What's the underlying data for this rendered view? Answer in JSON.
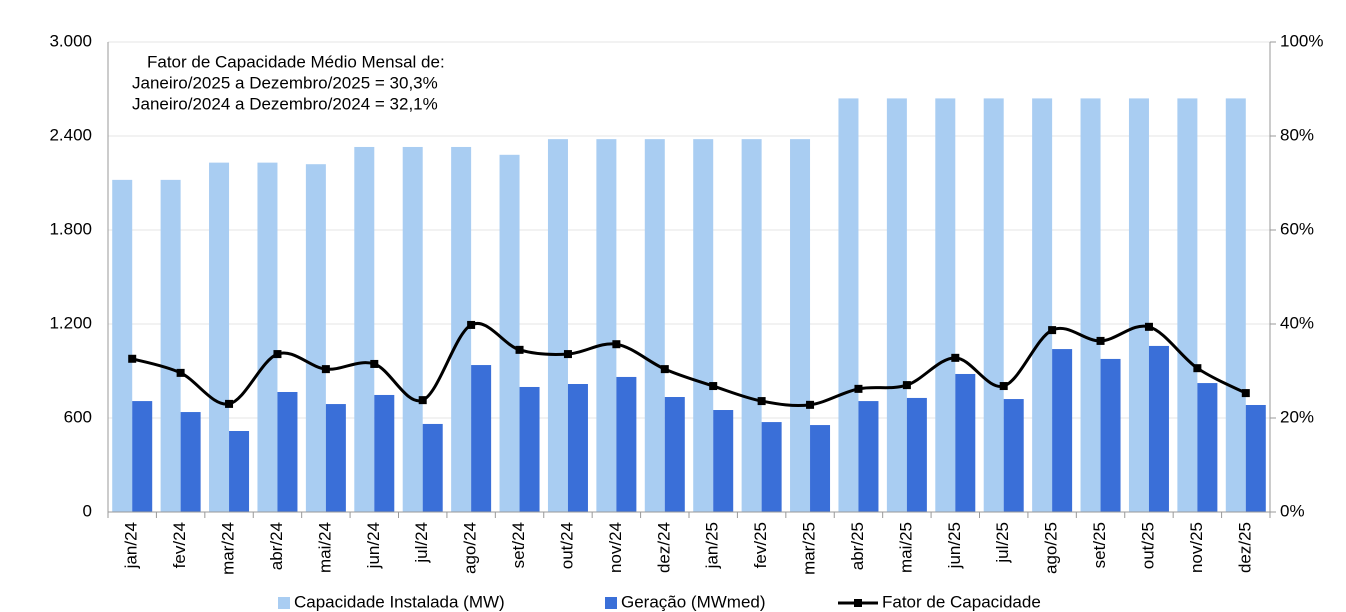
{
  "chart_data": {
    "type": "bar_line",
    "annotations": [
      "Fator de Capacidade Médio Mensal de:",
      "Janeiro/2025 a Dezembro/2025 = 30,3%",
      "Janeiro/2024 a Dezembro/2024 = 32,1%"
    ],
    "categories": [
      "jan/24",
      "fev/24",
      "mar/24",
      "abr/24",
      "mai/24",
      "jun/24",
      "jul/24",
      "ago/24",
      "set/24",
      "out/24",
      "nov/24",
      "dez/24",
      "jan/25",
      "fev/25",
      "mar/25",
      "abr/25",
      "mai/25",
      "jun/25",
      "jul/25",
      "ago/25",
      "set/25",
      "out/25",
      "nov/25",
      "dez/25"
    ],
    "series": [
      {
        "name": "Capacidade Instalada (MW)",
        "color": "#a9cdf2",
        "type": "bar",
        "values": [
          2120,
          2120,
          2230,
          2230,
          2220,
          2330,
          2330,
          2330,
          2280,
          2380,
          2380,
          2380,
          2380,
          2380,
          2380,
          2640,
          2640,
          2640,
          2640,
          2640,
          2640,
          2640,
          2640,
          2640
        ]
      },
      {
        "name": "Geração (MWmed)",
        "color": "#3a6fd8",
        "type": "bar",
        "values": [
          708,
          638,
          517,
          766,
          689,
          747,
          562,
          938,
          798,
          817,
          862,
          734,
          651,
          574,
          555,
          708,
          728,
          881,
          721,
          1040,
          977,
          1060,
          823,
          683
        ]
      },
      {
        "name": "Fator de Capacidade",
        "color": "#000000",
        "type": "line",
        "axis": "y2",
        "values": [
          32.6,
          29.6,
          23.0,
          33.6,
          30.4,
          31.5,
          23.8,
          39.8,
          34.5,
          33.6,
          35.7,
          30.4,
          26.8,
          23.6,
          22.8,
          26.2,
          27.0,
          32.8,
          26.8,
          38.7,
          36.4,
          39.4,
          30.6,
          25.3
        ]
      }
    ],
    "ylim": [
      0,
      3000
    ],
    "yticks": [
      0,
      {
        "value": 600,
        "label": "600"
      },
      {
        "value": 1200,
        "label": "1.200"
      },
      {
        "value": 1800,
        "label": "1.800"
      },
      {
        "value": 2400,
        "label": "2.400"
      },
      {
        "value": 3000,
        "label": "3.000"
      }
    ],
    "y2lim": [
      0,
      100
    ],
    "y2ticks": [
      {
        "value": 0,
        "label": "0%"
      },
      {
        "value": 20,
        "label": "20%"
      },
      {
        "value": 40,
        "label": "40%"
      },
      {
        "value": 60,
        "label": "60%"
      },
      {
        "value": 80,
        "label": "80%"
      },
      {
        "value": 100,
        "label": "100%"
      }
    ],
    "grid": true,
    "legend": "bottom"
  }
}
